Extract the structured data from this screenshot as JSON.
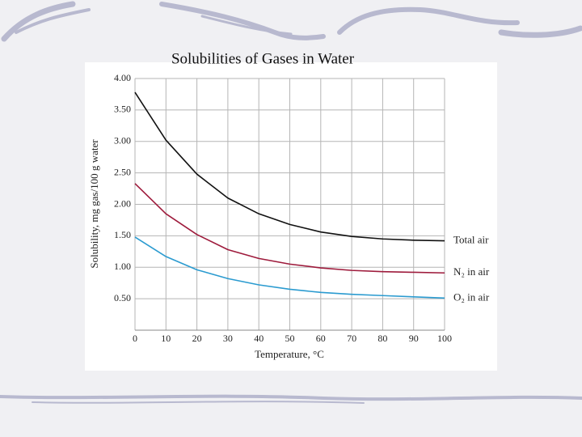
{
  "chart_data": {
    "type": "line",
    "title": "Solubilities of Gases in Water",
    "x_label": "Temperature, °C",
    "y_label": "Solubility, mg gas/100 g water",
    "x": [
      0,
      10,
      20,
      30,
      40,
      50,
      60,
      70,
      80,
      90,
      100
    ],
    "series": [
      {
        "name": "Total air",
        "color": "#111111",
        "values": [
          3.78,
          3.02,
          2.48,
          2.1,
          1.85,
          1.68,
          1.56,
          1.49,
          1.45,
          1.43,
          1.42
        ]
      },
      {
        "name": "N₂ in air",
        "color": "#9e1b3c",
        "values": [
          2.33,
          1.85,
          1.52,
          1.28,
          1.14,
          1.05,
          0.99,
          0.95,
          0.93,
          0.92,
          0.91
        ]
      },
      {
        "name": "O₂ in air",
        "color": "#2b9bd0",
        "values": [
          1.48,
          1.17,
          0.96,
          0.82,
          0.72,
          0.65,
          0.6,
          0.57,
          0.55,
          0.53,
          0.51
        ]
      }
    ],
    "xlim": [
      0,
      100
    ],
    "xticks": [
      0,
      10,
      20,
      30,
      40,
      50,
      60,
      70,
      80,
      90,
      100
    ],
    "ylim": [
      0,
      4
    ],
    "yticks": [
      {
        "value": 0.5,
        "label": "0.50"
      },
      {
        "value": 1,
        "label": "1.00"
      },
      {
        "value": 1.5,
        "label": "1.50"
      },
      {
        "value": 2,
        "label": "2.00"
      },
      {
        "value": 2.5,
        "label": "2.50"
      },
      {
        "value": 3,
        "label": "3.00"
      },
      {
        "value": 3.5,
        "label": "3.50"
      },
      {
        "value": 4,
        "label": "4.00"
      }
    ],
    "grid": true
  }
}
